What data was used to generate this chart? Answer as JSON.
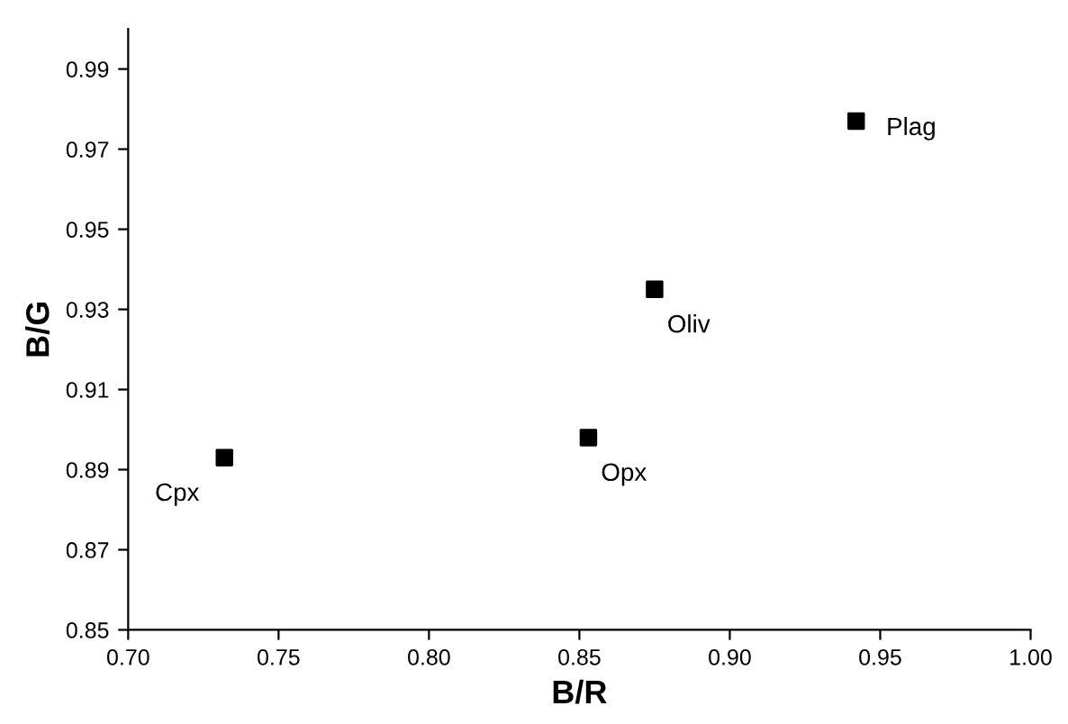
{
  "chart_data": {
    "type": "scatter",
    "xlabel": "B/R",
    "ylabel": "B/G",
    "x": [
      0.942,
      0.875,
      0.853,
      0.732
    ],
    "series": [
      {
        "color": "#000000",
        "values": [
          0.977,
          0.935,
          0.898,
          0.893
        ]
      }
    ],
    "marker": "square",
    "xlim": [
      0.7,
      1.0
    ],
    "xticks": [
      {
        "value": 0.7,
        "label": "0.70"
      },
      {
        "value": 0.75,
        "label": "0.75"
      },
      {
        "value": 0.8,
        "label": "0.80"
      },
      {
        "value": 0.85,
        "label": "0.85"
      },
      {
        "value": 0.9,
        "label": "0.90"
      },
      {
        "value": 0.95,
        "label": "0.95"
      },
      {
        "value": 1.0,
        "label": "1.00"
      }
    ],
    "ylim": [
      0.85,
      1.0
    ],
    "yticks": [
      0.85,
      0.87,
      0.89,
      0.91,
      0.93,
      0.95,
      0.97,
      0.99
    ],
    "grid": false,
    "legend": false,
    "annotations": [
      {
        "text": "Plag",
        "x": 0.942,
        "y": 0.977
      },
      {
        "text": "Oliv",
        "x": 0.875,
        "y": 0.935
      },
      {
        "text": "Opx",
        "x": 0.853,
        "y": 0.898
      },
      {
        "text": "Cpx",
        "x": 0.732,
        "y": 0.893
      }
    ]
  }
}
